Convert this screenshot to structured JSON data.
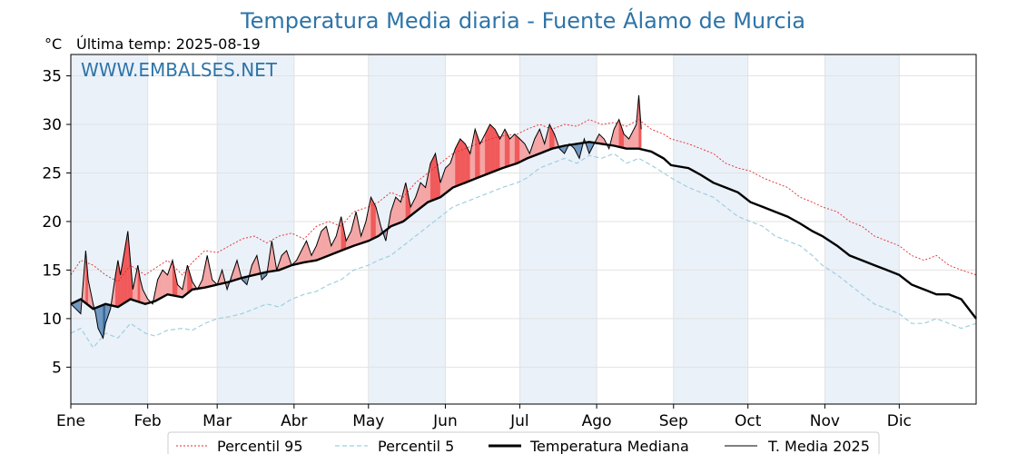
{
  "chart_data": {
    "type": "line",
    "title": "Temperatura Media diaria - Fuente Álamo de Murcia",
    "unit_label": "°C",
    "subtitle": "Última temp: 2025-08-19",
    "watermark": "WWW.EMBALSES.NET",
    "x_tick_labels": [
      "Ene",
      "Feb",
      "Mar",
      "Abr",
      "May",
      "Jun",
      "Jul",
      "Ago",
      "Sep",
      "Oct",
      "Nov",
      "Dic"
    ],
    "y_ticks": [
      5,
      10,
      15,
      20,
      25,
      30,
      35
    ],
    "xlim": [
      1,
      366
    ],
    "ylim": [
      1.2,
      37.2
    ],
    "grid": true,
    "legend_position": "bottom",
    "colors": {
      "p95": "#e8282a",
      "p5": "#9fcfe0",
      "median": "#000000",
      "current": "#000000",
      "above_fill": "#f4a6a6",
      "above_fill_hot": "#f05a5a",
      "below_fill": "#6f98c2",
      "below_fill_cold": "#3a6a9c",
      "month_band": "#eaf1f9",
      "title": "#2e74a8"
    },
    "series": [
      {
        "name": "Percentil 95",
        "style": "dotted-red",
        "x": [
          1,
          5,
          10,
          15,
          20,
          25,
          31,
          35,
          40,
          46,
          50,
          55,
          60,
          65,
          70,
          75,
          80,
          85,
          90,
          95,
          100,
          105,
          110,
          115,
          121,
          125,
          130,
          135,
          140,
          145,
          150,
          155,
          160,
          165,
          170,
          175,
          181,
          185,
          190,
          195,
          200,
          205,
          210,
          215,
          220,
          225,
          230,
          235,
          240,
          243,
          250,
          255,
          260,
          265,
          270,
          275,
          280,
          285,
          290,
          295,
          300,
          304,
          310,
          315,
          320,
          325,
          330,
          335,
          340,
          345,
          350,
          355,
          360,
          366
        ],
        "values": [
          14.5,
          16.0,
          15.5,
          14.5,
          13.8,
          15.5,
          14.5,
          15.2,
          16.0,
          14.5,
          15.8,
          17.0,
          16.8,
          17.5,
          18.2,
          18.5,
          17.8,
          18.5,
          18.8,
          18.2,
          19.5,
          20.0,
          19.5,
          21.0,
          21.5,
          22.0,
          23.0,
          22.5,
          24.0,
          25.0,
          26.0,
          27.0,
          27.5,
          28.0,
          28.5,
          28.8,
          29.0,
          29.5,
          30.0,
          29.5,
          30.0,
          29.8,
          30.5,
          30.0,
          30.2,
          29.8,
          30.5,
          29.5,
          29.0,
          28.5,
          28.0,
          27.5,
          27.0,
          26.0,
          25.5,
          25.2,
          24.5,
          24.0,
          23.5,
          22.5,
          22.0,
          21.5,
          21.0,
          20.0,
          19.5,
          18.5,
          18.0,
          17.5,
          16.5,
          16.0,
          16.5,
          15.5,
          15.0,
          14.5
        ]
      },
      {
        "name": "Percentil 5",
        "style": "dashed-lightblue",
        "x": [
          1,
          5,
          10,
          15,
          20,
          25,
          31,
          35,
          40,
          46,
          50,
          55,
          60,
          65,
          70,
          75,
          80,
          85,
          90,
          95,
          100,
          105,
          110,
          115,
          121,
          125,
          130,
          135,
          140,
          145,
          150,
          155,
          160,
          165,
          170,
          175,
          181,
          185,
          190,
          195,
          200,
          205,
          210,
          215,
          220,
          225,
          230,
          235,
          240,
          243,
          250,
          255,
          260,
          265,
          270,
          275,
          280,
          285,
          290,
          295,
          300,
          304,
          310,
          315,
          320,
          325,
          330,
          335,
          340,
          345,
          350,
          355,
          360,
          366
        ],
        "values": [
          8.5,
          9.0,
          7.0,
          8.5,
          8.0,
          9.5,
          8.5,
          8.2,
          8.8,
          9.0,
          8.8,
          9.5,
          10.0,
          10.2,
          10.5,
          11.0,
          11.5,
          11.2,
          12.0,
          12.5,
          12.8,
          13.5,
          14.0,
          15.0,
          15.5,
          16.0,
          16.5,
          17.5,
          18.5,
          19.5,
          20.5,
          21.5,
          22.0,
          22.5,
          23.0,
          23.5,
          24.0,
          24.5,
          25.5,
          26.0,
          26.5,
          26.0,
          26.8,
          26.5,
          27.0,
          26.0,
          26.5,
          25.8,
          25.0,
          24.5,
          23.5,
          23.0,
          22.5,
          21.5,
          20.5,
          20.0,
          19.5,
          18.5,
          18.0,
          17.5,
          16.5,
          15.5,
          14.5,
          13.5,
          12.5,
          11.5,
          11.0,
          10.5,
          9.5,
          9.5,
          10.0,
          9.5,
          9.0,
          9.5
        ]
      },
      {
        "name": "Temperatura Mediana",
        "style": "thick-black",
        "x": [
          1,
          5,
          10,
          15,
          20,
          25,
          31,
          35,
          40,
          46,
          50,
          55,
          60,
          65,
          70,
          75,
          80,
          85,
          90,
          95,
          100,
          105,
          110,
          115,
          121,
          125,
          130,
          135,
          140,
          145,
          150,
          155,
          160,
          165,
          170,
          175,
          181,
          185,
          190,
          195,
          200,
          205,
          210,
          215,
          220,
          225,
          230,
          235,
          240,
          243,
          250,
          255,
          260,
          265,
          270,
          275,
          280,
          285,
          290,
          295,
          300,
          304,
          310,
          315,
          320,
          325,
          330,
          335,
          340,
          345,
          350,
          355,
          360,
          366
        ],
        "values": [
          11.5,
          12.0,
          11.0,
          11.5,
          11.2,
          12.0,
          11.5,
          11.8,
          12.5,
          12.2,
          13.0,
          13.2,
          13.5,
          13.8,
          14.2,
          14.5,
          14.8,
          15.0,
          15.5,
          15.8,
          16.0,
          16.5,
          17.0,
          17.5,
          18.0,
          18.5,
          19.5,
          20.0,
          21.0,
          22.0,
          22.5,
          23.5,
          24.0,
          24.5,
          25.0,
          25.5,
          26.0,
          26.5,
          27.0,
          27.5,
          27.8,
          28.0,
          28.2,
          28.0,
          27.8,
          27.5,
          27.5,
          27.2,
          26.5,
          25.8,
          25.5,
          24.8,
          24.0,
          23.5,
          23.0,
          22.0,
          21.5,
          21.0,
          20.5,
          19.8,
          19.0,
          18.5,
          17.5,
          16.5,
          16.0,
          15.5,
          15.0,
          14.5,
          13.5,
          13.0,
          12.5,
          12.5,
          12.0,
          10.0
        ]
      },
      {
        "name": "T. Media 2025",
        "style": "thin-black",
        "x": [
          1,
          3,
          5,
          7,
          8,
          10,
          11,
          12,
          14,
          15,
          17,
          19,
          20,
          21,
          22,
          24,
          26,
          28,
          29,
          30,
          32,
          34,
          36,
          38,
          40,
          42,
          44,
          46,
          48,
          50,
          52,
          54,
          56,
          58,
          60,
          62,
          64,
          66,
          68,
          70,
          72,
          74,
          76,
          78,
          80,
          82,
          84,
          86,
          88,
          90,
          92,
          94,
          96,
          98,
          100,
          102,
          104,
          106,
          108,
          110,
          112,
          114,
          116,
          118,
          120,
          122,
          124,
          126,
          128,
          130,
          132,
          134,
          136,
          138,
          140,
          142,
          144,
          146,
          148,
          150,
          152,
          154,
          156,
          158,
          160,
          162,
          164,
          166,
          168,
          170,
          172,
          174,
          176,
          178,
          180,
          182,
          184,
          186,
          188,
          190,
          192,
          194,
          196,
          198,
          200,
          202,
          204,
          206,
          208,
          210,
          212,
          214,
          216,
          218,
          220,
          222,
          224,
          226,
          228,
          229,
          230,
          231
        ],
        "values": [
          11.5,
          11.0,
          10.5,
          17.0,
          14.0,
          11.5,
          10.5,
          9.0,
          8.0,
          9.5,
          11.0,
          14.5,
          16.0,
          14.5,
          16.0,
          19.0,
          13.0,
          15.5,
          14.0,
          13.0,
          12.0,
          11.5,
          14.0,
          15.0,
          14.5,
          16.0,
          13.5,
          13.0,
          15.5,
          13.8,
          13.0,
          14.0,
          16.5,
          14.0,
          13.5,
          15.0,
          13.0,
          14.5,
          16.0,
          14.0,
          13.5,
          15.5,
          16.5,
          14.0,
          14.5,
          18.0,
          15.0,
          16.5,
          17.0,
          15.5,
          16.0,
          17.0,
          18.0,
          16.5,
          17.5,
          19.0,
          19.5,
          17.5,
          18.5,
          20.5,
          18.0,
          19.0,
          21.0,
          18.5,
          20.0,
          22.5,
          21.5,
          19.5,
          18.0,
          21.0,
          22.5,
          22.0,
          24.0,
          21.5,
          22.5,
          24.0,
          23.5,
          26.0,
          27.0,
          24.0,
          25.5,
          26.0,
          27.5,
          28.5,
          28.0,
          27.0,
          29.5,
          28.0,
          29.0,
          30.0,
          29.5,
          28.5,
          29.5,
          28.5,
          29.0,
          28.5,
          28.0,
          27.0,
          28.5,
          29.5,
          28.0,
          30.0,
          29.0,
          27.5,
          27.0,
          28.0,
          27.5,
          26.5,
          28.5,
          27.0,
          28.0,
          29.0,
          28.5,
          27.5,
          29.5,
          30.5,
          29.0,
          28.5,
          29.5,
          30.0,
          33.0,
          29.5
        ]
      }
    ]
  },
  "legend": {
    "p95": "Percentil 95",
    "p5": "Percentil 5",
    "median": "Temperatura Mediana",
    "current": "T. Media 2025"
  }
}
